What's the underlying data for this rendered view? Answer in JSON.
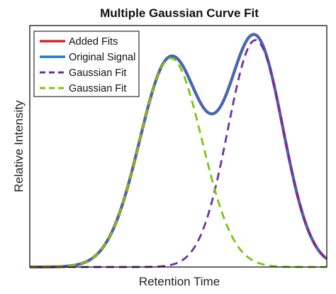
{
  "chart_data": {
    "type": "line",
    "title": "Multiple Gaussian Curve Fit",
    "xlabel": "Retention Time",
    "ylabel": "Relative Intensity",
    "xlim": [
      0,
      1
    ],
    "ylim": [
      0,
      1
    ],
    "grid": false,
    "legend_position": "top-left",
    "x_ticks": "none",
    "y_ticks": "none",
    "components": [
      {
        "amplitude": 0.865,
        "center": 0.475,
        "sigma": 0.105
      },
      {
        "amplitude": 0.94,
        "center": 0.76,
        "sigma": 0.093
      }
    ],
    "series": [
      {
        "name": "Added Fits",
        "color": "#d62728",
        "style": "solid",
        "sum": [
          0,
          1
        ]
      },
      {
        "name": "Original Signal",
        "color": "#1f77d0",
        "style": "solid",
        "sum": [
          0,
          1
        ]
      },
      {
        "name": "Gaussian Fit",
        "color": "#7030a0",
        "style": "dashed",
        "component": 1
      },
      {
        "name": "Gaussian Fit",
        "color": "#7ac70c",
        "style": "dashed",
        "component": 0
      }
    ]
  }
}
